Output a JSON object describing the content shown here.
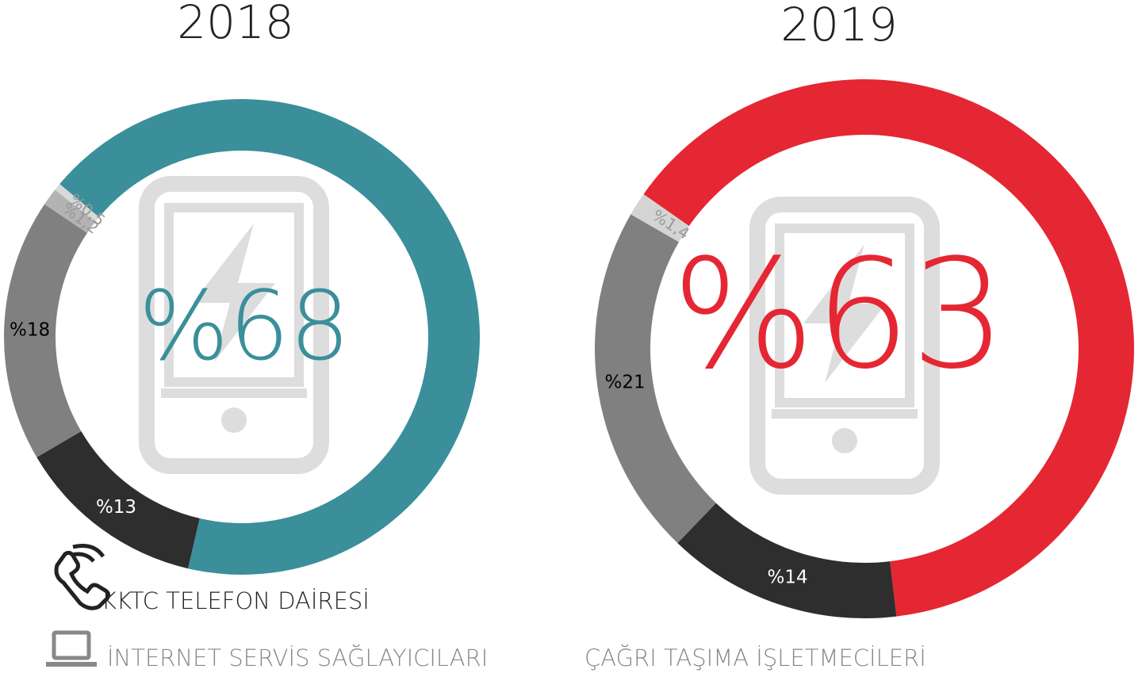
{
  "chart_data": [
    {
      "type": "donut",
      "title": "2018",
      "values": [
        68,
        13,
        18,
        1.2,
        0.5
      ],
      "value_labels": [
        "%68",
        "%13",
        "%18",
        "%1,2",
        "%0,5"
      ],
      "colors": [
        "#3a8f9b",
        "#2e2e2e",
        "#808080",
        "#b3b3b3",
        "#d9d9d9"
      ]
    },
    {
      "type": "donut",
      "title": "2019",
      "values": [
        63,
        14,
        21,
        1.4
      ],
      "value_labels": [
        "%63",
        "%14",
        "%21",
        "%1,4"
      ],
      "colors": [
        "#e52733",
        "#2e2e2e",
        "#808080",
        "#d4d4d4"
      ]
    }
  ],
  "legend": [
    "KKTC TELEFON DAİRESİ",
    "İNTERNET SERVİS SAĞLAYICILARI",
    "ÇAĞRI TAŞIMA İŞLETMECİLERİ"
  ]
}
